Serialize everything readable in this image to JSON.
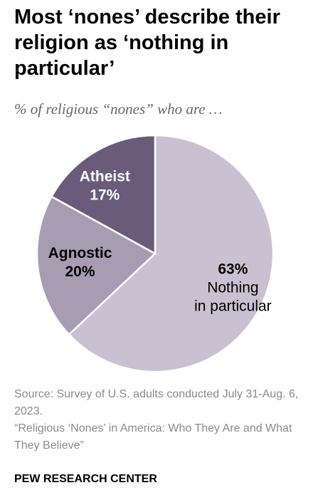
{
  "title": "Most ‘nones’ describe their religion as ‘nothing in particular’",
  "subtitle": "% of religious “nones” who are …",
  "chart_data": {
    "type": "pie",
    "slices": [
      {
        "name": "Nothing in particular",
        "label_lines": [
          "Nothing",
          "in particular"
        ],
        "value": 63,
        "value_label": "63%",
        "color": "#c9c1d1",
        "text_color": "#000000"
      },
      {
        "name": "Agnostic",
        "label_lines": [
          "Agnostic"
        ],
        "value": 20,
        "value_label": "20%",
        "color": "#a89cb2",
        "text_color": "#000000"
      },
      {
        "name": "Atheist",
        "label_lines": [
          "Atheist"
        ],
        "value": 17,
        "value_label": "17%",
        "color": "#6a5b7b",
        "text_color": "#ffffff"
      }
    ]
  },
  "source": {
    "line1": "Source: Survey of U.S. adults conducted July 31-Aug. 6, 2023.",
    "line2": "“Religious ‘Nones’ in America: Who They Are and What They Believe”"
  },
  "brand": "PEW RESEARCH CENTER"
}
